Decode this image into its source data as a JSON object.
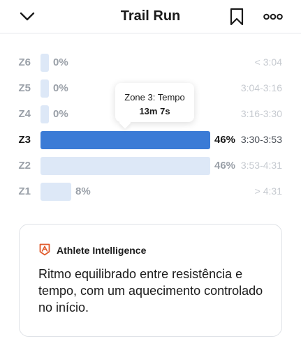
{
  "header": {
    "title": "Trail Run",
    "back_icon": "chevron-down-icon",
    "bookmark_icon": "bookmark-icon",
    "more_icon": "more-dots-icon"
  },
  "zones": [
    {
      "label": "Z6",
      "percent": "0%",
      "range": "< 3:04",
      "fraction": 0.0,
      "active": false
    },
    {
      "label": "Z5",
      "percent": "0%",
      "range": "3:04-3:16",
      "fraction": 0.0,
      "active": false
    },
    {
      "label": "Z4",
      "percent": "0%",
      "range": "3:16-3:30",
      "fraction": 0.0,
      "active": false
    },
    {
      "label": "Z3",
      "percent": "46%",
      "range": "3:30-3:53",
      "fraction": 0.46,
      "active": true
    },
    {
      "label": "Z2",
      "percent": "46%",
      "range": "3:53-4:31",
      "fraction": 0.46,
      "active": false
    },
    {
      "label": "Z1",
      "percent": "8%",
      "range": "> 4:31",
      "fraction": 0.08,
      "active": false
    }
  ],
  "tooltip": {
    "title": "Zone 3: Tempo",
    "value": "13m 7s"
  },
  "insight": {
    "icon": "athlete-intelligence-icon",
    "title": "Athlete Intelligence",
    "text": "Ritmo equilibrado entre resistência e tempo, com um aquecimento controlado no início."
  },
  "colors": {
    "active_bar": "#3b7bd6",
    "inactive_bar": "#dde8f7",
    "brand_icon": "#e05a2b"
  }
}
